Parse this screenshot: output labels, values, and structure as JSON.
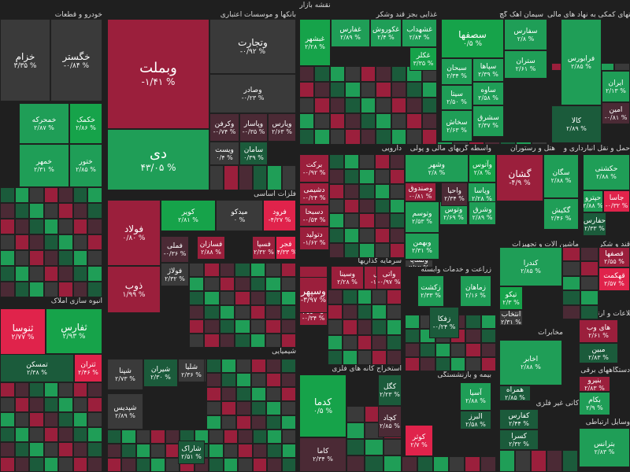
{
  "page": {
    "title": "نقشه بازار"
  },
  "colors": {
    "green_strong": "#16a34a",
    "green": "#1f9e57",
    "green_dark": "#1b5b3b",
    "red_strong": "#e0234b",
    "red": "#9b1f3c",
    "red_dark": "#4b2a35",
    "neutral": "#3a3a3a",
    "border": "#202020",
    "text": "#ffffff",
    "header_text": "#d6d6d6"
  },
  "sectors": [
    {
      "id": "banks",
      "title": "بانکها و موسسات اعتباری"
    },
    {
      "id": "food",
      "title": "غذایی بجز قند وشکر"
    },
    {
      "id": "cement",
      "title": "سیمان آهک گچ"
    },
    {
      "id": "fin",
      "title": "فعالیتهای کمکی به نهاد های مالی"
    },
    {
      "id": "auto",
      "title": "خودرو و قطعات"
    },
    {
      "id": "basemetals",
      "title": "فلزات اساسی"
    },
    {
      "id": "drug",
      "title": "دارویی"
    },
    {
      "id": "monetary",
      "title": "واسطه گریهای مالی و پولی"
    },
    {
      "id": "hotel",
      "title": "هتل و رستوران"
    },
    {
      "id": "transport",
      "title": "حمل و نقل انبارداری و"
    },
    {
      "id": "invest",
      "title": "سرمایه گذاریها"
    },
    {
      "id": "agri",
      "title": "زراعت و خدمات وابسته"
    },
    {
      "id": "machinery",
      "title": "ماشین آلات و تجهیزات"
    },
    {
      "id": "sugar",
      "title": "قند و شکر"
    },
    {
      "id": "energy",
      "title": "انبوه سازی املاک"
    },
    {
      "id": "chem",
      "title": "شیمیایی"
    },
    {
      "id": "telecom",
      "title": "مخابرات"
    },
    {
      "id": "it",
      "title": "اطلاعات و ارتباطات"
    },
    {
      "id": "mining",
      "title": "استخراج کانه های فلزی"
    },
    {
      "id": "insurance",
      "title": "بیمه و بازنشستگی"
    },
    {
      "id": "nonmetal",
      "title": "کانی غیر فلزی"
    },
    {
      "id": "elec",
      "title": "دستگاههای برقی"
    },
    {
      "id": "wireless",
      "title": "وسایل ارتباطی"
    }
  ],
  "tiles": [
    {
      "name": "خگستر",
      "pct": "-۰/۸۴ %",
      "c": "neutral",
      "big": "mid"
    },
    {
      "name": "خزام",
      "pct": "۳/۳۵ %",
      "c": "neutral",
      "big": "mid"
    },
    {
      "name": "خکمک",
      "pct": "۲/۸۶ %",
      "c": "green_strong"
    },
    {
      "name": "خمحرکه",
      "pct": "۲/۸۷ %",
      "c": "green"
    },
    {
      "name": "ختور",
      "pct": "۲/۸۵ %",
      "c": "green"
    },
    {
      "name": "خمهر",
      "pct": "۲/۳۱ %",
      "c": "green"
    },
    {
      "name": "وبملت",
      "pct": "-۱/۴۱ %",
      "c": "red",
      "big": "big"
    },
    {
      "name": "دی",
      "pct": "۴۳/۰۵ %",
      "c": "green",
      "big": "big"
    },
    {
      "name": "وتجارت",
      "pct": "-۰/۹۲ %",
      "c": "neutral",
      "big": "mid"
    },
    {
      "name": "وصادر",
      "pct": "-۰/۲۳ %",
      "c": "neutral"
    },
    {
      "name": "ویارس",
      "pct": "۲/۶۳ %",
      "c": "red_dark"
    },
    {
      "name": "وپاسار",
      "pct": "-۰/۳۵ %",
      "c": "red_dark"
    },
    {
      "name": "وکرفن",
      "pct": "-۰/۷۴ %",
      "c": "red_dark"
    },
    {
      "name": "سامان",
      "pct": "۰/۳۹ %",
      "c": "green_dark"
    },
    {
      "name": "ویست",
      "pct": "۰/۴ %",
      "c": "neutral"
    },
    {
      "name": "غبشهر",
      "pct": "۲/۲۸ %",
      "c": "green_strong"
    },
    {
      "name": "غکوروش",
      "pct": "۲/۴ %",
      "c": "green"
    },
    {
      "name": "غفارس",
      "pct": "۲/۸۹ %",
      "c": "green"
    },
    {
      "name": "غشهداب",
      "pct": "۲/۸۴ %",
      "c": "green"
    },
    {
      "name": "غکلر",
      "pct": "۳/۳۵ %",
      "c": "green_strong"
    },
    {
      "name": "سفارس",
      "pct": "۲/۸ %",
      "c": "green"
    },
    {
      "name": "سصفها",
      "pct": "۰/۵ %",
      "c": "green_strong",
      "big": "mid"
    },
    {
      "name": "ستران",
      "pct": "۲/۶۱ %",
      "c": "green"
    },
    {
      "name": "سخاش",
      "pct": "۲/۶۳ %",
      "c": "green"
    },
    {
      "name": "سبحان",
      "pct": "۲/۳۴ %",
      "c": "green"
    },
    {
      "name": "سپاها",
      "pct": "۲/۳۹ %",
      "c": "green"
    },
    {
      "name": "سیتا",
      "pct": "۲/۵۰ %",
      "c": "green"
    },
    {
      "name": "ساوه",
      "pct": "۲/۵۸ %",
      "c": "green"
    },
    {
      "name": "سشرق",
      "pct": "۲/۳۷ %",
      "c": "green"
    },
    {
      "name": "فرابورس",
      "pct": "۲/۸۵ %",
      "c": "green"
    },
    {
      "name": "کالا",
      "pct": "۲/۸۹ %",
      "c": "green_dark"
    },
    {
      "name": "ایران",
      "pct": "۲/۱۳ %",
      "c": "green"
    },
    {
      "name": "امین",
      "pct": "-۰/۸۱ %",
      "c": "red_dark"
    },
    {
      "name": "فولاد",
      "pct": "۰/۸۰ %",
      "c": "red",
      "big": "mid"
    },
    {
      "name": "ذوب",
      "pct": "۱/۹۹ %",
      "c": "red",
      "big": "mid"
    },
    {
      "name": "فملی",
      "pct": "-۰/۳۶ %",
      "c": "red_dark"
    },
    {
      "name": "کویر",
      "pct": "۲/۸۱ %",
      "c": "green_strong"
    },
    {
      "name": "میدکو",
      "pct": "۰ %",
      "c": "neutral"
    },
    {
      "name": "فرود",
      "pct": "-۴/۲۷ %",
      "c": "red_strong"
    },
    {
      "name": "فولاژ",
      "pct": "۲/۳۲ %",
      "c": "neutral"
    },
    {
      "name": "فسازان",
      "pct": "۲/۸۸ %",
      "c": "red"
    },
    {
      "name": "فسپا",
      "pct": "۲/۳۲ %",
      "c": "red"
    },
    {
      "name": "فجر",
      "pct": "-۴/۳۳ %",
      "c": "red_strong"
    },
    {
      "name": "برکت",
      "pct": "-۰/۹۲ %",
      "c": "red"
    },
    {
      "name": "دشیمی",
      "pct": "-۰/۲۴ %",
      "c": "red"
    },
    {
      "name": "دسبحا",
      "pct": "-۰/۵۴ %",
      "c": "red"
    },
    {
      "name": "دتولید",
      "pct": "-۱/۶۲ %",
      "c": "red"
    },
    {
      "name": "وتوسم",
      "pct": "۲/۵۳ %",
      "c": "green"
    },
    {
      "name": "وبهمن",
      "pct": "۲/۳۱ %",
      "c": "green"
    },
    {
      "name": "وتوس",
      "pct": "۲/۶۹ %",
      "c": "green"
    },
    {
      "name": "وصندوق",
      "pct": "-۰/۸۱ %",
      "c": "red"
    },
    {
      "name": "وآتوس",
      "pct": "۲/۸ %",
      "c": "green_strong"
    },
    {
      "name": "وشهر",
      "pct": "۲/۸ %",
      "c": "green"
    },
    {
      "name": "وپاسا",
      "pct": "۲/۲۸ %",
      "c": "green"
    },
    {
      "name": "واحیا",
      "pct": "۲/۳۴ %",
      "c": "red_dark"
    },
    {
      "name": "وشرق",
      "pct": "۲/۸۹ %",
      "c": "green"
    },
    {
      "name": "ولساپا",
      "pct": "۲/۱۲ %",
      "c": "neutral"
    },
    {
      "name": "گشان",
      "pct": "-۴/۹ %",
      "c": "red",
      "big": "mid"
    },
    {
      "name": "سگان",
      "pct": "۲/۸۸ %",
      "c": "green"
    },
    {
      "name": "سگا",
      "pct": "۲/۱۹ %",
      "c": "green_strong"
    },
    {
      "name": "گکیش",
      "pct": "۲/۴۶ %",
      "c": "green"
    },
    {
      "name": "حکشتی",
      "pct": "۲/۸۸ %",
      "c": "green"
    },
    {
      "name": "حپترو",
      "pct": "۲/۸۸ %",
      "c": "green"
    },
    {
      "name": "جاسا",
      "pct": "-۰/۳۲ %",
      "c": "red_strong"
    },
    {
      "name": "حفارس",
      "pct": "۲/۳۳ %",
      "c": "green_dark"
    },
    {
      "name": "تیپیکو",
      "pct": "۲/۲۸ %",
      "c": "red"
    },
    {
      "name": "وخارزم",
      "pct": "-۰/۳۴ %",
      "c": "red"
    },
    {
      "name": "وسپهر",
      "pct": "-۳/۹۷ %",
      "c": "red",
      "big": "mid"
    },
    {
      "name": "وسینا",
      "pct": "۲/۲۸ %",
      "c": "red"
    },
    {
      "name": "ونیکی",
      "pct": "-۱/۸۷ %",
      "c": "red"
    },
    {
      "name": "واتی",
      "pct": "-۰/۹۷ %",
      "c": "red"
    },
    {
      "name": "زکشت",
      "pct": "۲/۳۳ %",
      "c": "green"
    },
    {
      "name": "زماهان",
      "pct": "۲/۱۶ %",
      "c": "green"
    },
    {
      "name": "زفکا",
      "pct": "-۰/۲۴ %",
      "c": "green_dark"
    },
    {
      "name": "کندرا",
      "pct": "۲/۸۵ %",
      "c": "green"
    },
    {
      "name": "تیکو",
      "pct": "۲/۳ %",
      "c": "green_strong"
    },
    {
      "name": "انتخاب",
      "pct": "۲/۳۱ %",
      "c": "neutral"
    },
    {
      "name": "قهکمت",
      "pct": "۲/۵۷ %",
      "c": "red_strong"
    },
    {
      "name": "قاسا",
      "pct": "۲/۹۳ %",
      "c": "green"
    },
    {
      "name": "قصفها",
      "pct": "۲/۵۵ %",
      "c": "red"
    },
    {
      "name": "ثنوسا",
      "pct": "۲/۷۷ %",
      "c": "red_strong",
      "big": "mid"
    },
    {
      "name": "ثفارس",
      "pct": "۲/۹۳ %",
      "c": "green_strong",
      "big": "mid"
    },
    {
      "name": "ثتران",
      "pct": "۲/۴۶ %",
      "c": "red_strong"
    },
    {
      "name": "تمسکن",
      "pct": "۲/۳۸ %",
      "c": "green_dark"
    },
    {
      "name": "شپنا",
      "pct": "۲/۷۳ %",
      "c": "neutral"
    },
    {
      "name": "شبندر",
      "pct": "۲/۸۷ %",
      "c": "neutral"
    },
    {
      "name": "شپدیس",
      "pct": "۲/۸۹ %",
      "c": "neutral"
    },
    {
      "name": "شیران",
      "pct": "۲/۳۰ %",
      "c": "green_dark"
    },
    {
      "name": "شلیا",
      "pct": "۲/۳۶ %",
      "c": "neutral"
    },
    {
      "name": "شاراک",
      "pct": "۲/۵۱ %",
      "c": "green_dark"
    },
    {
      "name": "اخابر",
      "pct": "۲/۸۸ %",
      "c": "green"
    },
    {
      "name": "همراه",
      "pct": "۲/۸۵ %",
      "c": "green_dark"
    },
    {
      "name": "کدما",
      "pct": "۰/۵ %",
      "c": "green_strong",
      "big": "mid"
    },
    {
      "name": "کاما",
      "pct": "۲/۳۴ %",
      "c": "red_dark"
    },
    {
      "name": "کگل",
      "pct": "۲/۲۳ %",
      "c": "green_dark"
    },
    {
      "name": "کچاد",
      "pct": "۲/۸۵ %",
      "c": "red_dark"
    },
    {
      "name": "اتکای",
      "pct": "۲/۸۷ %",
      "c": "green"
    },
    {
      "name": "آسیا",
      "pct": "۲/۸۸ %",
      "c": "green"
    },
    {
      "name": "کوثر",
      "pct": "۲/۷ %",
      "c": "red_strong"
    },
    {
      "name": "البرز",
      "pct": "۲/۵۸ %",
      "c": "green_dark"
    },
    {
      "name": "کفارس",
      "pct": "۲/۴۴ %",
      "c": "green_dark"
    },
    {
      "name": "کسرا",
      "pct": "۲/۳۲ %",
      "c": "green_dark"
    },
    {
      "name": "بنیرو",
      "pct": "۲/۸۳ %",
      "c": "red"
    },
    {
      "name": "بکام",
      "pct": "۲/۹ %",
      "c": "green"
    },
    {
      "name": "بترانس",
      "pct": "۲/۸۳ %",
      "c": "green"
    },
    {
      "name": "های وب",
      "pct": "۲/۶۱ %",
      "c": "red"
    },
    {
      "name": "مبین",
      "pct": "۲/۸۳ %",
      "c": "green_dark"
    }
  ]
}
